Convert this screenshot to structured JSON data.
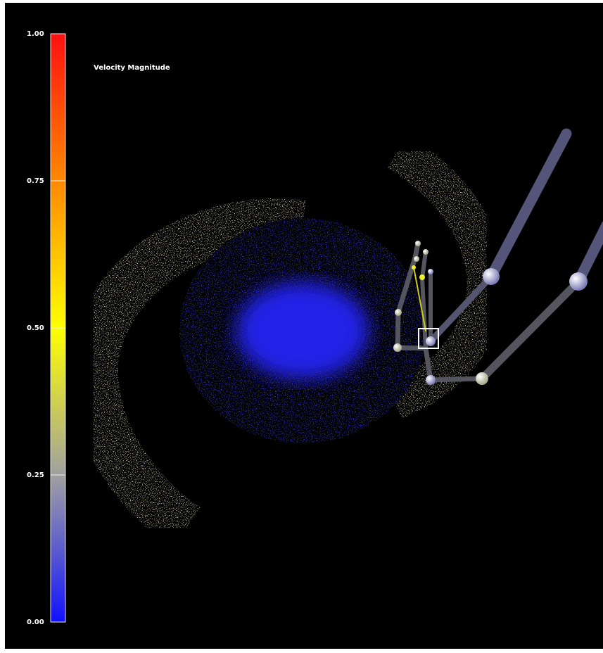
{
  "colorbar": {
    "title": "Velocity Magnitude",
    "range": [
      0,
      1
    ],
    "ticks": [
      {
        "value": 0,
        "label": "0.00"
      },
      {
        "value": 0.25,
        "label": "0.25"
      },
      {
        "value": 0.5,
        "label": "0.50"
      },
      {
        "value": 0.75,
        "label": "0.75"
      },
      {
        "value": 1,
        "label": "1.00"
      }
    ]
  }
}
